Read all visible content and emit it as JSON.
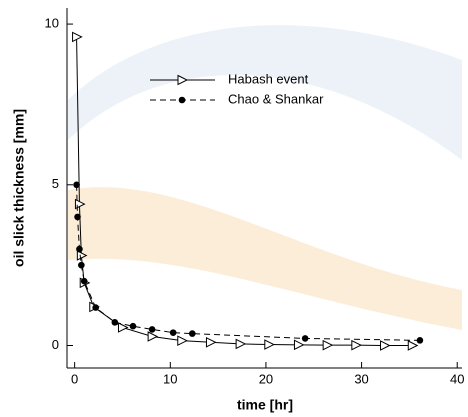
{
  "chart_data": {
    "type": "line",
    "x_label": "time [hr]",
    "y_label": "oil slick thickness [mm]",
    "xlim": [
      -0.8,
      40.5
    ],
    "ylim": [
      -0.7,
      10.5
    ],
    "xticks": [
      0,
      10,
      20,
      30,
      40
    ],
    "yticks": [
      0,
      5,
      10
    ],
    "legend": "upper center",
    "series": [
      {
        "name": "Habash event",
        "color": "#000000",
        "marker": "triangle",
        "line_style": "solid",
        "x": [
          0.2,
          0.5,
          0.7,
          1.0,
          2.0,
          5.0,
          8.1,
          11.2,
          14.2,
          17.3,
          20.3,
          23.4,
          26.4,
          29.4,
          32.4,
          35.3
        ],
        "values": [
          9.6,
          4.4,
          2.8,
          1.95,
          1.2,
          0.56,
          0.28,
          0.15,
          0.1,
          0.05,
          0.03,
          0.02,
          0.01,
          0.01,
          0.0,
          0.0
        ]
      },
      {
        "name": "Chao & Shankar",
        "color": "#000000",
        "marker": "circle",
        "line_style": "dashed",
        "x": [
          0.2,
          0.3,
          0.5,
          0.7,
          1.0,
          2.2,
          4.2,
          6.1,
          8.1,
          10.3,
          12.3,
          24.1,
          36.1
        ],
        "values": [
          5.0,
          4.0,
          3.0,
          2.5,
          2.0,
          1.18,
          0.72,
          0.6,
          0.5,
          0.4,
          0.37,
          0.22,
          0.16
        ]
      }
    ]
  }
}
